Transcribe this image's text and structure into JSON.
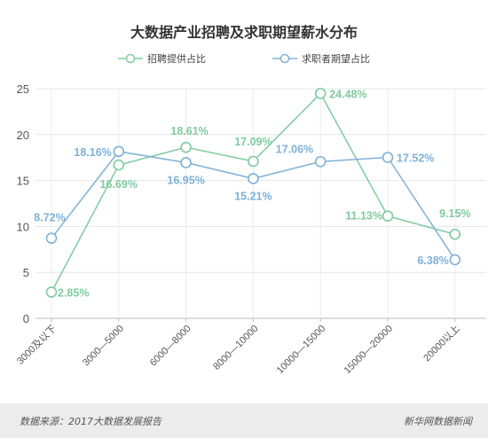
{
  "chart_data": {
    "type": "line",
    "title": "大数据产业招聘及求职期望薪水分布",
    "categories": [
      "3000及以下",
      "3000—5000",
      "6000—8000",
      "8000—10000",
      "10000—15000",
      "15000—20000",
      "20000以上"
    ],
    "series": [
      {
        "name": "招聘提供占比",
        "color": "#7fcba0",
        "values": [
          2.85,
          16.69,
          18.61,
          17.09,
          24.48,
          11.13,
          9.15
        ],
        "labels": [
          "2.85%",
          "16.69%",
          "18.61%",
          "17.09%",
          "24.48%",
          "11.13%",
          "9.15%"
        ]
      },
      {
        "name": "求职者期望占比",
        "color": "#7eb1d8",
        "values": [
          8.72,
          18.16,
          16.95,
          15.21,
          17.06,
          17.52,
          6.38
        ],
        "labels": [
          "8.72%",
          "18.16%",
          "16.95%",
          "15.21%",
          "17.06%",
          "17.52%",
          "6.38%"
        ]
      }
    ],
    "yticks": [
      "0",
      "5",
      "10",
      "15",
      "20",
      "25"
    ],
    "ylim": [
      0,
      25
    ],
    "grid": true,
    "legend_position": "top"
  },
  "footer": {
    "source": "数据来源：2017大数据发展报告",
    "credit": "新华网数据新闻"
  }
}
